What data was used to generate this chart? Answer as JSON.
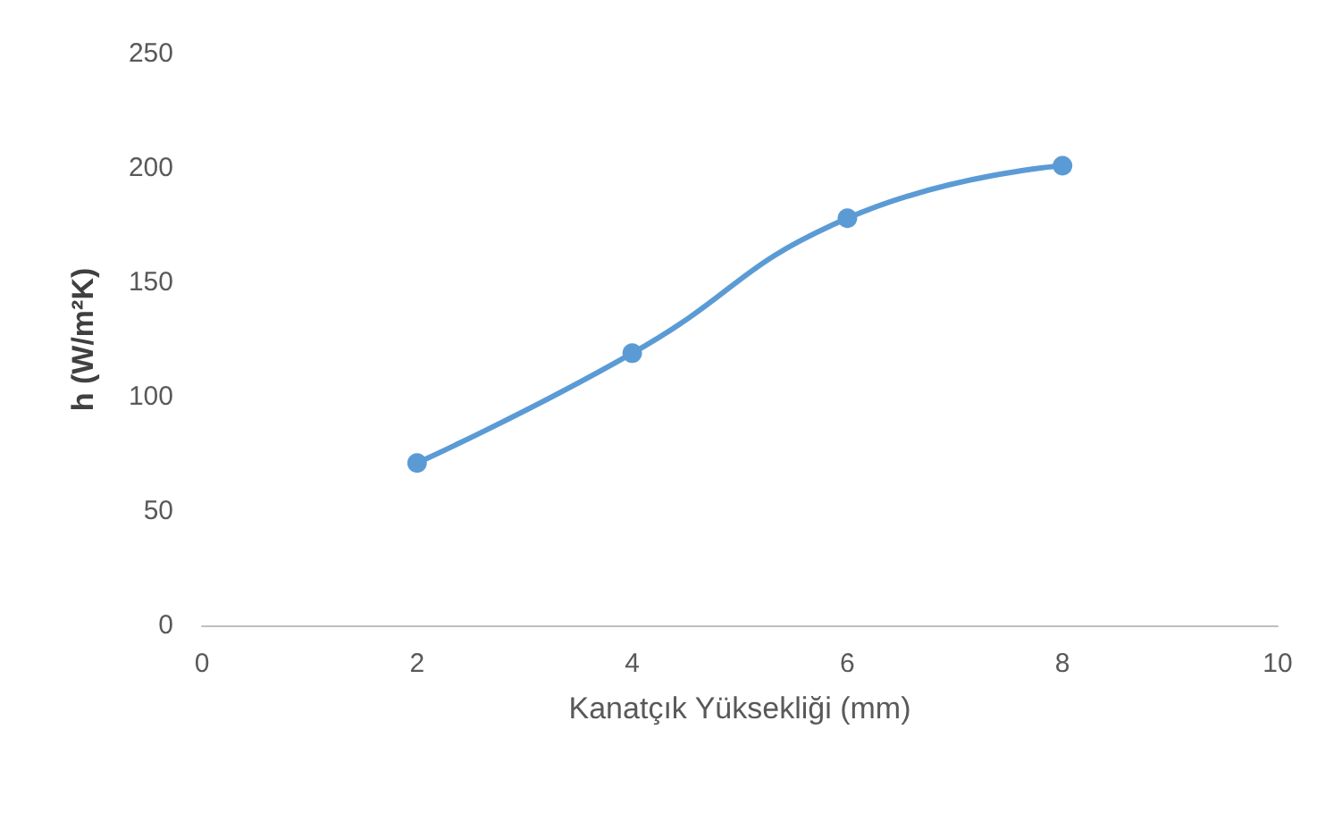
{
  "chart_data": {
    "type": "line",
    "xlabel": "Kanatçık Yüksekliği (mm)",
    "ylabel": "h (W/m²K)",
    "x": [
      2,
      4,
      6,
      8
    ],
    "series": [
      {
        "color": "#5b9bd5",
        "values": [
          71,
          119,
          178,
          201
        ]
      }
    ],
    "xlim": [
      0,
      10
    ],
    "xticks": [
      0,
      2,
      4,
      6,
      8,
      10
    ],
    "ylim": [
      0,
      250
    ],
    "yticks": [
      0,
      50,
      100,
      150,
      200,
      250
    ],
    "grid": false,
    "marker": "circle",
    "line_style": "solid"
  }
}
